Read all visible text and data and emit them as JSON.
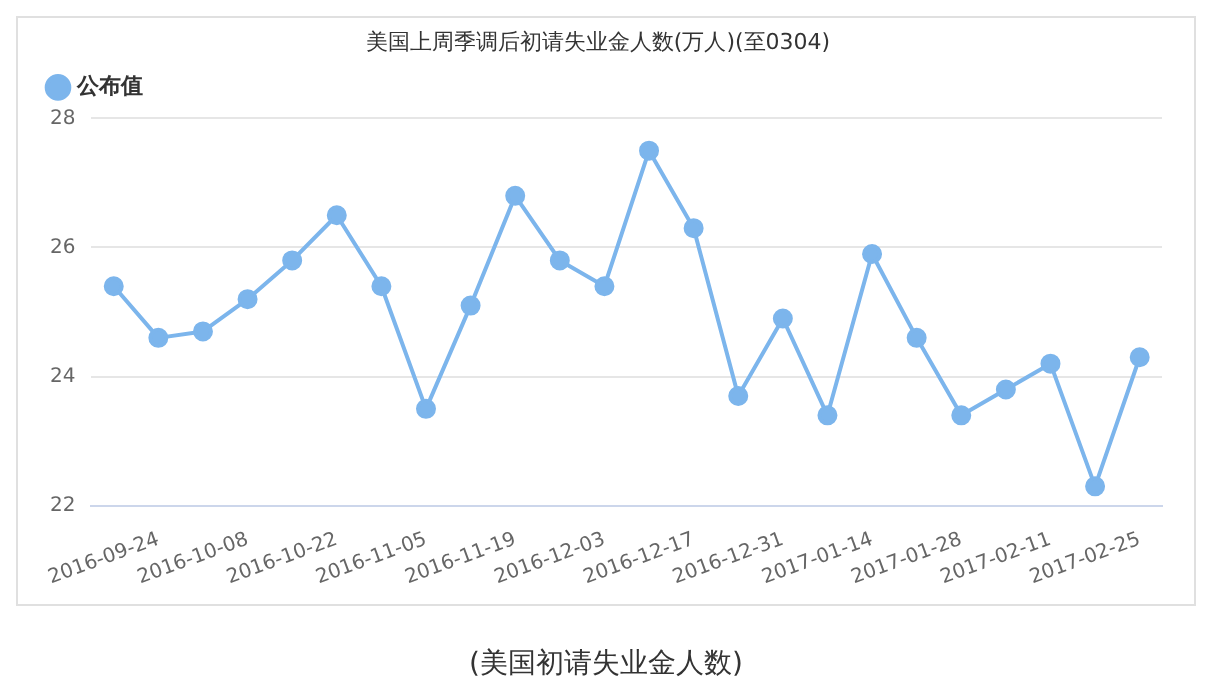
{
  "chart_data": {
    "type": "line",
    "title": "美国上周季调后初请失业金人数(万人)(至0304)",
    "categories": [
      null,
      "2016-09-24",
      null,
      "2016-10-08",
      null,
      "2016-10-22",
      null,
      "2016-11-05",
      null,
      "2016-11-19",
      null,
      "2016-12-03",
      null,
      "2016-12-17",
      null,
      "2016-12-31",
      null,
      "2017-01-14",
      null,
      "2017-01-28",
      null,
      "2017-02-11",
      null,
      "2017-02-25"
    ],
    "series": [
      {
        "name": "公布值",
        "color": "#7cb5ec",
        "values": [
          25.4,
          24.6,
          24.7,
          25.2,
          25.8,
          26.5,
          25.4,
          23.5,
          25.1,
          26.8,
          25.8,
          25.4,
          27.5,
          26.3,
          23.7,
          24.9,
          23.4,
          25.9,
          24.6,
          23.4,
          23.8,
          24.2,
          22.3,
          24.3
        ]
      }
    ],
    "ylim": [
      22,
      28
    ],
    "yticks": [
      22,
      24,
      26,
      28
    ],
    "grid": "y",
    "legend": "top left",
    "marker": "circle",
    "line_style": "solid",
    "annotations": [
      "(美国初请失业金人数)"
    ]
  }
}
